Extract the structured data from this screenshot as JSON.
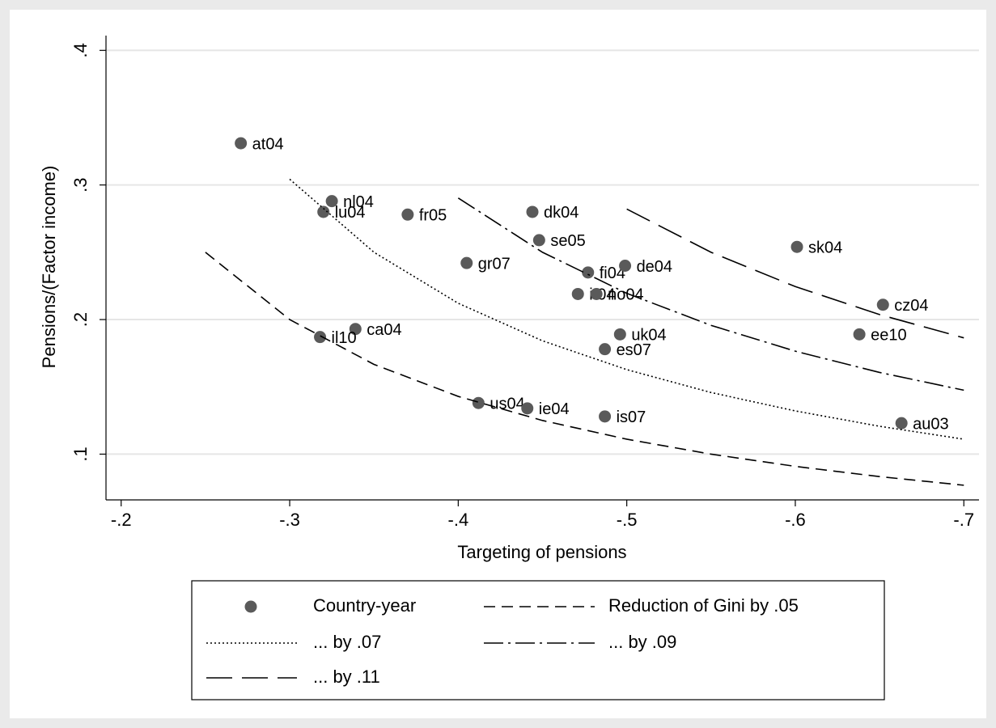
{
  "chart_data": {
    "type": "scatter",
    "x_label": "Targeting of pensions",
    "y_label": "Pensions/(Factor income)",
    "xlim": [
      -0.191,
      -0.709
    ],
    "ylim": [
      0.066,
      0.411
    ],
    "xticks": [
      {
        "value": -0.2,
        "label": "-.2"
      },
      {
        "value": -0.3,
        "label": "-.3"
      },
      {
        "value": -0.4,
        "label": "-.4"
      },
      {
        "value": -0.5,
        "label": "-.5"
      },
      {
        "value": -0.6,
        "label": "-.6"
      },
      {
        "value": -0.7,
        "label": "-.7"
      }
    ],
    "yticks": [
      {
        "value": 0.1,
        "label": ".1"
      },
      {
        "value": 0.2,
        "label": ".2"
      },
      {
        "value": 0.3,
        "label": ".3"
      },
      {
        "value": 0.4,
        "label": ".4"
      }
    ],
    "grid": true,
    "series": [
      {
        "name": "Country-year",
        "type": "scatter",
        "color": "#5a5a5a",
        "labels": [
          "at04",
          "nl04",
          "lu04",
          "fr05",
          "dk04",
          "se05",
          "gr07",
          "fi04",
          "de04",
          "it04",
          "no04",
          "sk04",
          "cz04",
          "ee10",
          "ca04",
          "il10",
          "uk04",
          "es07",
          "us04",
          "ie04",
          "is07",
          "au03"
        ],
        "x": [
          -0.271,
          -0.325,
          -0.32,
          -0.37,
          -0.444,
          -0.448,
          -0.405,
          -0.477,
          -0.499,
          -0.471,
          -0.482,
          -0.601,
          -0.652,
          -0.638,
          -0.339,
          -0.318,
          -0.496,
          -0.487,
          -0.412,
          -0.441,
          -0.487,
          -0.663
        ],
        "values": [
          0.331,
          0.288,
          0.28,
          0.278,
          0.28,
          0.259,
          0.242,
          0.235,
          0.24,
          0.219,
          0.219,
          0.254,
          0.211,
          0.189,
          0.193,
          0.187,
          0.189,
          0.178,
          0.138,
          0.134,
          0.128,
          0.123
        ]
      },
      {
        "name": "Reduction of Gini by .05",
        "type": "line",
        "color": "#000000",
        "dash": "dash",
        "x": [
          -0.25,
          -0.3,
          -0.35,
          -0.4,
          -0.45,
          -0.5,
          -0.55,
          -0.6,
          -0.65,
          -0.7
        ],
        "values": [
          0.25,
          0.2,
          0.1667,
          0.1429,
          0.125,
          0.1111,
          0.1,
          0.0909,
          0.0833,
          0.0769
        ]
      },
      {
        "name": "... by .07",
        "type": "line",
        "color": "#000000",
        "dash": "dot",
        "x": [
          -0.3,
          -0.35,
          -0.4,
          -0.45,
          -0.5,
          -0.55,
          -0.6,
          -0.65,
          -0.7
        ],
        "values": [
          0.3043,
          0.25,
          0.2121,
          0.1842,
          0.1628,
          0.1458,
          0.1321,
          0.1207,
          0.1111
        ]
      },
      {
        "name": "... by .09",
        "type": "line",
        "color": "#000000",
        "dash": "dashdot",
        "x": [
          -0.4,
          -0.45,
          -0.5,
          -0.55,
          -0.6,
          -0.65,
          -0.7
        ],
        "values": [
          0.2903,
          0.25,
          0.2195,
          0.1957,
          0.1765,
          0.1607,
          0.1475
        ]
      },
      {
        "name": "... by .11",
        "type": "line",
        "color": "#000000",
        "dash": "longdash",
        "x": [
          -0.5,
          -0.55,
          -0.6,
          -0.65,
          -0.7
        ],
        "values": [
          0.2821,
          0.25,
          0.2245,
          0.2037,
          0.1864
        ]
      }
    ]
  }
}
